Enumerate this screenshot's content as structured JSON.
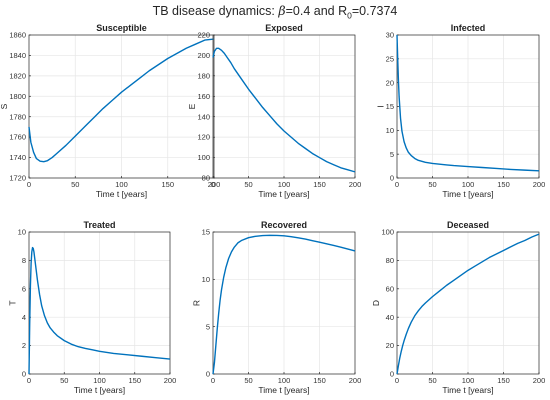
{
  "figure": {
    "title_prefix": "TB disease dynamics: ",
    "title_beta_symbol": "β",
    "title_beta_value": "=0.4 and R",
    "title_r_sub": "0",
    "title_r_value": "=0.7374",
    "line_color": "#0072BD"
  },
  "chart_data": [
    {
      "type": "line",
      "title": "Susceptible",
      "xlabel": "Time t [years]",
      "ylabel": "S",
      "xlim": [
        0,
        200
      ],
      "ylim": [
        1720,
        1860
      ],
      "xticks": [
        0,
        50,
        100,
        150,
        200
      ],
      "yticks": [
        1720,
        1740,
        1760,
        1780,
        1800,
        1820,
        1840,
        1860
      ],
      "grid": true,
      "x": [
        0,
        2,
        5,
        8,
        12,
        16,
        20,
        25,
        30,
        40,
        50,
        60,
        70,
        80,
        90,
        100,
        110,
        120,
        130,
        140,
        150,
        160,
        170,
        180,
        190,
        200
      ],
      "y": [
        1770,
        1755,
        1745,
        1739,
        1736.5,
        1736,
        1737,
        1740,
        1744,
        1752,
        1761,
        1770,
        1779,
        1788,
        1796,
        1804,
        1811,
        1818,
        1825,
        1831,
        1837,
        1842,
        1847,
        1851,
        1855,
        1856
      ]
    },
    {
      "type": "line",
      "title": "Exposed",
      "xlabel": "Time t [years]",
      "ylabel": "E",
      "xlim": [
        0,
        200
      ],
      "ylim": [
        80,
        220
      ],
      "xticks": [
        0,
        50,
        100,
        150,
        200
      ],
      "yticks": [
        80,
        100,
        120,
        140,
        160,
        180,
        200,
        220
      ],
      "grid": true,
      "x": [
        0,
        2,
        5,
        8,
        12,
        16,
        20,
        25,
        30,
        40,
        50,
        60,
        70,
        80,
        90,
        100,
        110,
        120,
        130,
        140,
        150,
        160,
        170,
        180,
        190,
        200
      ],
      "y": [
        198,
        204,
        207,
        207,
        205,
        202,
        198,
        193,
        187,
        177,
        167,
        158,
        149,
        141,
        133,
        126,
        120,
        114,
        109,
        104,
        100,
        96,
        93,
        90,
        88,
        86
      ]
    },
    {
      "type": "line",
      "title": "Infected",
      "xlabel": "Time t [years]",
      "ylabel": "I",
      "xlim": [
        0,
        200
      ],
      "ylim": [
        0,
        30
      ],
      "xticks": [
        0,
        50,
        100,
        150,
        200
      ],
      "yticks": [
        0,
        5,
        10,
        15,
        20,
        25,
        30
      ],
      "grid": true,
      "x": [
        0,
        1,
        2,
        3,
        5,
        7,
        10,
        13,
        16,
        20,
        25,
        30,
        40,
        50,
        60,
        70,
        80,
        90,
        100,
        120,
        140,
        160,
        180,
        200
      ],
      "y": [
        30,
        25,
        20.5,
        17,
        12.5,
        9.8,
        7.6,
        6.3,
        5.4,
        4.7,
        4.1,
        3.7,
        3.3,
        3.05,
        2.9,
        2.75,
        2.6,
        2.5,
        2.4,
        2.2,
        2.0,
        1.8,
        1.65,
        1.5
      ]
    },
    {
      "type": "line",
      "title": "Treated",
      "xlabel": "Time t [years]",
      "ylabel": "T",
      "xlim": [
        0,
        200
      ],
      "ylim": [
        0,
        10
      ],
      "xticks": [
        0,
        50,
        100,
        150,
        200
      ],
      "yticks": [
        0,
        2,
        4,
        6,
        8,
        10
      ],
      "grid": true,
      "x": [
        0,
        1,
        2,
        3,
        4,
        5,
        6,
        7,
        8,
        10,
        12,
        15,
        18,
        22,
        26,
        30,
        35,
        40,
        50,
        60,
        70,
        80,
        90,
        100,
        120,
        140,
        160,
        180,
        200
      ],
      "y": [
        0,
        3.5,
        6.2,
        7.8,
        8.6,
        8.9,
        8.85,
        8.6,
        8.2,
        7.4,
        6.6,
        5.6,
        4.8,
        4.1,
        3.6,
        3.25,
        2.95,
        2.7,
        2.35,
        2.1,
        1.92,
        1.8,
        1.7,
        1.6,
        1.45,
        1.35,
        1.25,
        1.15,
        1.05
      ]
    },
    {
      "type": "line",
      "title": "Recovered",
      "xlabel": "Time t [years]",
      "ylabel": "R",
      "xlim": [
        0,
        200
      ],
      "ylim": [
        0,
        15
      ],
      "xticks": [
        0,
        50,
        100,
        150,
        200
      ],
      "yticks": [
        0,
        5,
        10,
        15
      ],
      "grid": true,
      "x": [
        0,
        2,
        4,
        6,
        8,
        10,
        12,
        15,
        18,
        22,
        26,
        30,
        35,
        40,
        50,
        60,
        70,
        80,
        90,
        100,
        110,
        120,
        130,
        140,
        150,
        160,
        170,
        180,
        190,
        200
      ],
      "y": [
        0,
        1.2,
        3.0,
        4.8,
        6.4,
        7.8,
        8.9,
        10.2,
        11.2,
        12.2,
        12.9,
        13.4,
        13.85,
        14.1,
        14.4,
        14.55,
        14.62,
        14.65,
        14.64,
        14.6,
        14.5,
        14.38,
        14.25,
        14.08,
        13.92,
        13.75,
        13.58,
        13.4,
        13.2,
        13.0
      ]
    },
    {
      "type": "line",
      "title": "Deceased",
      "xlabel": "Time t [years]",
      "ylabel": "D",
      "xlim": [
        0,
        200
      ],
      "ylim": [
        0,
        100
      ],
      "xticks": [
        0,
        50,
        100,
        150,
        200
      ],
      "yticks": [
        0,
        20,
        40,
        60,
        80,
        100
      ],
      "grid": true,
      "x": [
        0,
        2,
        4,
        6,
        8,
        10,
        13,
        16,
        20,
        25,
        30,
        35,
        40,
        50,
        60,
        70,
        80,
        90,
        100,
        110,
        120,
        130,
        140,
        150,
        160,
        170,
        180,
        190,
        200
      ],
      "y": [
        0,
        6,
        11.5,
        16,
        20,
        23.5,
        28,
        32,
        36.5,
        41,
        44.5,
        47.5,
        50,
        54.5,
        58.5,
        62.5,
        66,
        69.5,
        73,
        76,
        79,
        82,
        84.5,
        87,
        89.5,
        92,
        94,
        96.5,
        98.5
      ]
    }
  ]
}
